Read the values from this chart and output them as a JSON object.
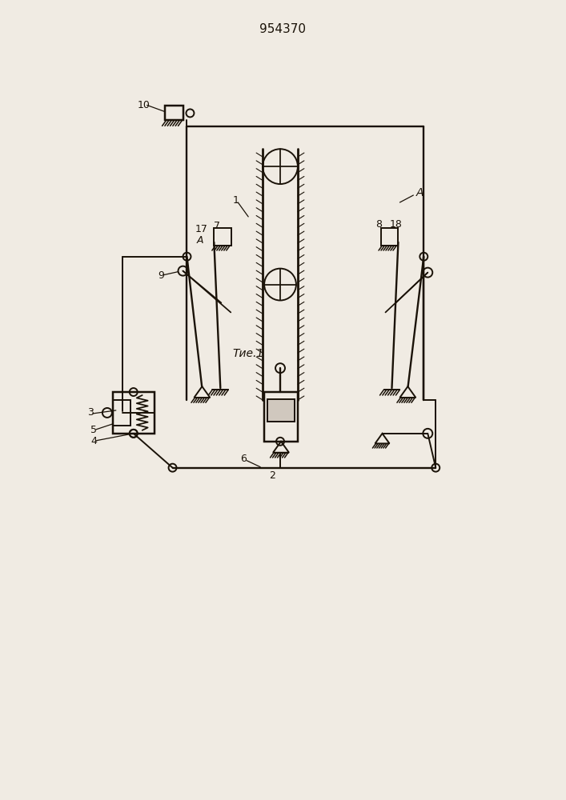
{
  "title": "954370",
  "caption": "Τие.1",
  "bg_color": "#f0ebe3",
  "line_color": "#1a1208"
}
